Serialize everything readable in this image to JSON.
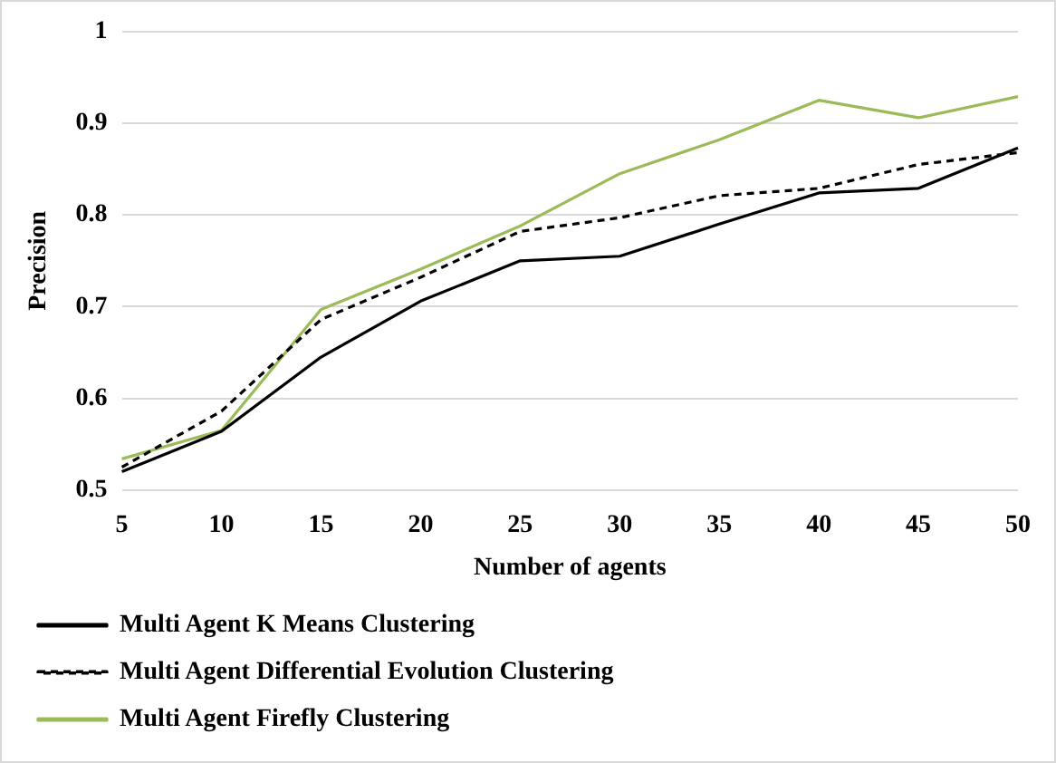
{
  "chart_data": {
    "type": "line",
    "xlabel": "Number of agents",
    "ylabel": "Precision",
    "categories": [
      "5",
      "10",
      "15",
      "20",
      "25",
      "30",
      "35",
      "40",
      "45",
      "50"
    ],
    "ylim": [
      0.5,
      1
    ],
    "yticks": [
      0.5,
      0.6,
      0.7,
      0.8,
      0.9,
      1
    ],
    "grid": "y",
    "legend": "bottom",
    "marker": "none",
    "series": [
      {
        "name": "Multi Agent K Means Clustering",
        "color": "#000000",
        "line_style": "solid",
        "values": [
          0.52,
          0.564,
          0.645,
          0.706,
          0.75,
          0.755,
          0.79,
          0.824,
          0.829,
          0.873
        ]
      },
      {
        "name": "Multi Agent Differential Evolution Clustering",
        "color": "#000000",
        "line_style": "dashed",
        "values": [
          0.525,
          0.586,
          0.686,
          0.732,
          0.782,
          0.797,
          0.821,
          0.829,
          0.855,
          0.868
        ]
      },
      {
        "name": "Multi Agent Firefly Clustering",
        "color": "#9bbb59",
        "line_style": "solid",
        "values": [
          0.534,
          0.565,
          0.697,
          0.741,
          0.788,
          0.845,
          0.882,
          0.925,
          0.906,
          0.929
        ]
      }
    ]
  }
}
